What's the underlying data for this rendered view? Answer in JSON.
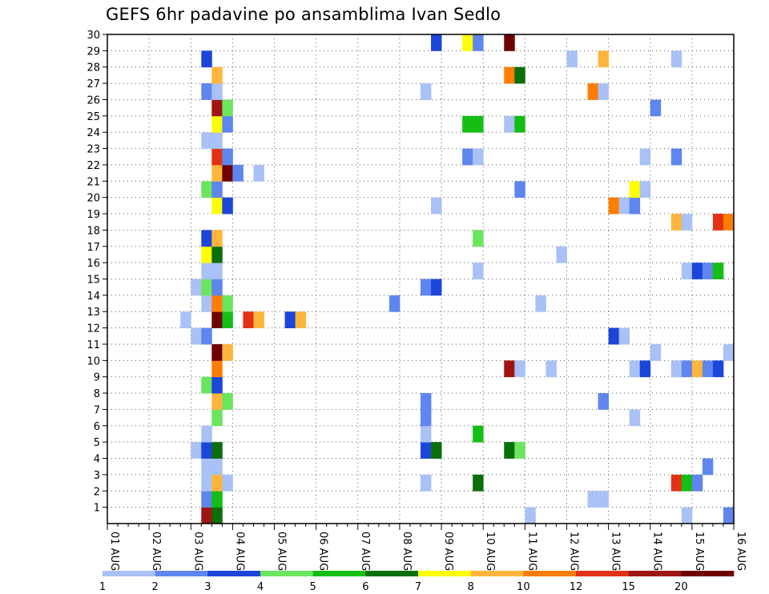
{
  "title": "GEFS 6hr padavine po ansamblima Ivan Sedlo",
  "chart_data": {
    "type": "heatmap",
    "title": "GEFS 6hr padavine po ansamblima Ivan Sedlo",
    "x_unit": "6-hour steps from 01 AUG 00 UTC",
    "x_range": [
      0,
      60
    ],
    "y_range": [
      0,
      30
    ],
    "x_tick_labels": [
      "01 AUG",
      "02 AUG",
      "03 AUG",
      "04 AUG",
      "05 AUG",
      "06 AUG",
      "07 AUG",
      "08 AUG",
      "09 AUG",
      "10 AUG",
      "11 AUG",
      "12 AUG",
      "13 AUG",
      "14 AUG",
      "15 AUG",
      "16 AUG"
    ],
    "y_tick_labels": [
      "1",
      "2",
      "3",
      "4",
      "5",
      "6",
      "7",
      "8",
      "9",
      "10",
      "11",
      "12",
      "13",
      "14",
      "15",
      "16",
      "17",
      "18",
      "19",
      "20",
      "21",
      "22",
      "23",
      "24",
      "25",
      "26",
      "27",
      "28",
      "29",
      "30"
    ],
    "grid": true,
    "legend": {
      "placement": "bottom",
      "labels": [
        "1",
        "2",
        "3",
        "4",
        "5",
        "6",
        "7",
        "8",
        "10",
        "12",
        "15",
        "20"
      ],
      "colors": [
        "#a9c1f5",
        "#5f85ee",
        "#1c46da",
        "#6be45e",
        "#14be14",
        "#0a6e0a",
        "#ffff00",
        "#ffb53c",
        "#ff7d00",
        "#e23214",
        "#a01414",
        "#6e0000"
      ]
    },
    "cells": [
      {
        "x": 9,
        "y": 0,
        "c": 10
      },
      {
        "x": 10,
        "y": 0,
        "c": 5
      },
      {
        "x": 40,
        "y": 0,
        "c": 0
      },
      {
        "x": 55,
        "y": 0,
        "c": 0
      },
      {
        "x": 59,
        "y": 0,
        "c": 1
      },
      {
        "x": 9,
        "y": 1,
        "c": 1
      },
      {
        "x": 10,
        "y": 1,
        "c": 4
      },
      {
        "x": 46,
        "y": 1,
        "c": 0
      },
      {
        "x": 47,
        "y": 1,
        "c": 0
      },
      {
        "x": 9,
        "y": 2,
        "c": 0
      },
      {
        "x": 10,
        "y": 2,
        "c": 7
      },
      {
        "x": 11,
        "y": 2,
        "c": 0
      },
      {
        "x": 30,
        "y": 2,
        "c": 0
      },
      {
        "x": 35,
        "y": 2,
        "c": 5
      },
      {
        "x": 54,
        "y": 2,
        "c": 9
      },
      {
        "x": 55,
        "y": 2,
        "c": 4
      },
      {
        "x": 56,
        "y": 2,
        "c": 1
      },
      {
        "x": 9,
        "y": 3,
        "c": 0
      },
      {
        "x": 10,
        "y": 3,
        "c": 0
      },
      {
        "x": 57,
        "y": 3,
        "c": 1
      },
      {
        "x": 8,
        "y": 4,
        "c": 0
      },
      {
        "x": 9,
        "y": 4,
        "c": 2
      },
      {
        "x": 10,
        "y": 4,
        "c": 5
      },
      {
        "x": 30,
        "y": 4,
        "c": 2
      },
      {
        "x": 31,
        "y": 4,
        "c": 5
      },
      {
        "x": 38,
        "y": 4,
        "c": 5
      },
      {
        "x": 39,
        "y": 4,
        "c": 3
      },
      {
        "x": 9,
        "y": 5,
        "c": 0
      },
      {
        "x": 30,
        "y": 5,
        "c": 0
      },
      {
        "x": 35,
        "y": 5,
        "c": 4
      },
      {
        "x": 10,
        "y": 6,
        "c": 3
      },
      {
        "x": 30,
        "y": 6,
        "c": 1
      },
      {
        "x": 50,
        "y": 6,
        "c": 0
      },
      {
        "x": 10,
        "y": 7,
        "c": 7
      },
      {
        "x": 11,
        "y": 7,
        "c": 3
      },
      {
        "x": 30,
        "y": 7,
        "c": 1
      },
      {
        "x": 47,
        "y": 7,
        "c": 1
      },
      {
        "x": 9,
        "y": 8,
        "c": 3
      },
      {
        "x": 10,
        "y": 8,
        "c": 2
      },
      {
        "x": 10,
        "y": 9,
        "c": 8
      },
      {
        "x": 38,
        "y": 9,
        "c": 10
      },
      {
        "x": 39,
        "y": 9,
        "c": 0
      },
      {
        "x": 42,
        "y": 9,
        "c": 0
      },
      {
        "x": 50,
        "y": 9,
        "c": 0
      },
      {
        "x": 51,
        "y": 9,
        "c": 2
      },
      {
        "x": 54,
        "y": 9,
        "c": 0
      },
      {
        "x": 55,
        "y": 9,
        "c": 1
      },
      {
        "x": 56,
        "y": 9,
        "c": 7
      },
      {
        "x": 57,
        "y": 9,
        "c": 1
      },
      {
        "x": 58,
        "y": 9,
        "c": 2
      },
      {
        "x": 10,
        "y": 10,
        "c": 11
      },
      {
        "x": 11,
        "y": 10,
        "c": 7
      },
      {
        "x": 52,
        "y": 10,
        "c": 0
      },
      {
        "x": 59,
        "y": 10,
        "c": 0
      },
      {
        "x": 8,
        "y": 11,
        "c": 0
      },
      {
        "x": 9,
        "y": 11,
        "c": 1
      },
      {
        "x": 48,
        "y": 11,
        "c": 2
      },
      {
        "x": 49,
        "y": 11,
        "c": 0
      },
      {
        "x": 7,
        "y": 12,
        "c": 0
      },
      {
        "x": 10,
        "y": 12,
        "c": 11
      },
      {
        "x": 11,
        "y": 12,
        "c": 4
      },
      {
        "x": 13,
        "y": 12,
        "c": 9
      },
      {
        "x": 14,
        "y": 12,
        "c": 7
      },
      {
        "x": 17,
        "y": 12,
        "c": 2
      },
      {
        "x": 18,
        "y": 12,
        "c": 7
      },
      {
        "x": 9,
        "y": 13,
        "c": 0
      },
      {
        "x": 10,
        "y": 13,
        "c": 8
      },
      {
        "x": 11,
        "y": 13,
        "c": 3
      },
      {
        "x": 27,
        "y": 13,
        "c": 1
      },
      {
        "x": 41,
        "y": 13,
        "c": 0
      },
      {
        "x": 8,
        "y": 14,
        "c": 0
      },
      {
        "x": 9,
        "y": 14,
        "c": 3
      },
      {
        "x": 10,
        "y": 14,
        "c": 1
      },
      {
        "x": 30,
        "y": 14,
        "c": 1
      },
      {
        "x": 31,
        "y": 14,
        "c": 2
      },
      {
        "x": 9,
        "y": 15,
        "c": 0
      },
      {
        "x": 10,
        "y": 15,
        "c": 0
      },
      {
        "x": 35,
        "y": 15,
        "c": 0
      },
      {
        "x": 55,
        "y": 15,
        "c": 0
      },
      {
        "x": 56,
        "y": 15,
        "c": 2
      },
      {
        "x": 57,
        "y": 15,
        "c": 1
      },
      {
        "x": 58,
        "y": 15,
        "c": 4
      },
      {
        "x": 9,
        "y": 16,
        "c": 6
      },
      {
        "x": 10,
        "y": 16,
        "c": 5
      },
      {
        "x": 43,
        "y": 16,
        "c": 0
      },
      {
        "x": 9,
        "y": 17,
        "c": 2
      },
      {
        "x": 10,
        "y": 17,
        "c": 7
      },
      {
        "x": 35,
        "y": 17,
        "c": 3
      },
      {
        "x": 54,
        "y": 18,
        "c": 7
      },
      {
        "x": 55,
        "y": 18,
        "c": 0
      },
      {
        "x": 58,
        "y": 18,
        "c": 9
      },
      {
        "x": 59,
        "y": 18,
        "c": 8
      },
      {
        "x": 10,
        "y": 19,
        "c": 6
      },
      {
        "x": 11,
        "y": 19,
        "c": 2
      },
      {
        "x": 31,
        "y": 19,
        "c": 0
      },
      {
        "x": 48,
        "y": 19,
        "c": 8
      },
      {
        "x": 49,
        "y": 19,
        "c": 0
      },
      {
        "x": 50,
        "y": 19,
        "c": 1
      },
      {
        "x": 9,
        "y": 20,
        "c": 3
      },
      {
        "x": 10,
        "y": 20,
        "c": 1
      },
      {
        "x": 39,
        "y": 20,
        "c": 1
      },
      {
        "x": 50,
        "y": 20,
        "c": 6
      },
      {
        "x": 51,
        "y": 20,
        "c": 0
      },
      {
        "x": 10,
        "y": 21,
        "c": 7
      },
      {
        "x": 11,
        "y": 21,
        "c": 11
      },
      {
        "x": 12,
        "y": 21,
        "c": 1
      },
      {
        "x": 14,
        "y": 21,
        "c": 0
      },
      {
        "x": 10,
        "y": 22,
        "c": 9
      },
      {
        "x": 11,
        "y": 22,
        "c": 1
      },
      {
        "x": 34,
        "y": 22,
        "c": 1
      },
      {
        "x": 35,
        "y": 22,
        "c": 0
      },
      {
        "x": 51,
        "y": 22,
        "c": 0
      },
      {
        "x": 54,
        "y": 22,
        "c": 1
      },
      {
        "x": 9,
        "y": 23,
        "c": 0
      },
      {
        "x": 10,
        "y": 23,
        "c": 0
      },
      {
        "x": 10,
        "y": 24,
        "c": 6
      },
      {
        "x": 11,
        "y": 24,
        "c": 1
      },
      {
        "x": 34,
        "y": 24,
        "c": 4
      },
      {
        "x": 35,
        "y": 24,
        "c": 4
      },
      {
        "x": 38,
        "y": 24,
        "c": 0
      },
      {
        "x": 39,
        "y": 24,
        "c": 4
      },
      {
        "x": 10,
        "y": 25,
        "c": 10
      },
      {
        "x": 11,
        "y": 25,
        "c": 3
      },
      {
        "x": 52,
        "y": 25,
        "c": 1
      },
      {
        "x": 9,
        "y": 26,
        "c": 1
      },
      {
        "x": 10,
        "y": 26,
        "c": 0
      },
      {
        "x": 30,
        "y": 26,
        "c": 0
      },
      {
        "x": 46,
        "y": 26,
        "c": 8
      },
      {
        "x": 47,
        "y": 26,
        "c": 0
      },
      {
        "x": 10,
        "y": 27,
        "c": 7
      },
      {
        "x": 38,
        "y": 27,
        "c": 8
      },
      {
        "x": 39,
        "y": 27,
        "c": 5
      },
      {
        "x": 9,
        "y": 28,
        "c": 2
      },
      {
        "x": 44,
        "y": 28,
        "c": 0
      },
      {
        "x": 47,
        "y": 28,
        "c": 7
      },
      {
        "x": 54,
        "y": 28,
        "c": 0
      },
      {
        "x": 31,
        "y": 29,
        "c": 2
      },
      {
        "x": 34,
        "y": 29,
        "c": 6
      },
      {
        "x": 35,
        "y": 29,
        "c": 1
      },
      {
        "x": 38,
        "y": 29,
        "c": 11
      }
    ]
  }
}
